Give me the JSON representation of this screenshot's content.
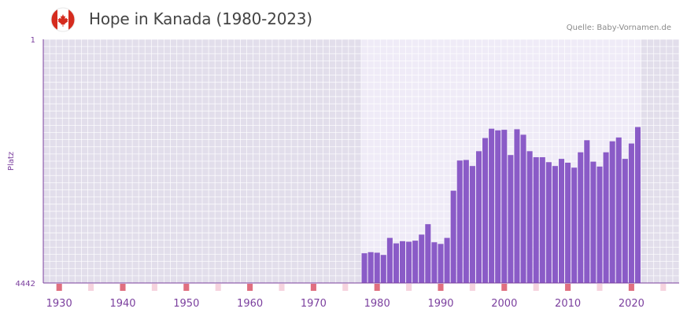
{
  "header": {
    "title": "Hope in Kanada (1980-2023)",
    "source": "Quelle: Baby-Vornamen.de",
    "flag_icon": "canada-flag-icon"
  },
  "colors": {
    "bar": "#8a5bc7",
    "axis": "#7b3f9e",
    "label": "#7b3f9e",
    "decade_marker": "#e06f80",
    "half_decade_marker": "#f6d3de",
    "bg_outside": "#e2deeb",
    "bg_inside": "#efebf7",
    "flag_red": "#d52b1e"
  },
  "chart_data": {
    "type": "bar",
    "title": "Hope in Kanada (1980-2023)",
    "xlabel": "",
    "ylabel": "Platz",
    "y_inverted": true,
    "ylim": [
      4442,
      1
    ],
    "y_tick_labels": [
      "1",
      "4442"
    ],
    "xlim": [
      1928,
      2028
    ],
    "x_tick_labels": [
      "1930",
      "1940",
      "1950",
      "1960",
      "1970",
      "1980",
      "1990",
      "2000",
      "2010",
      "2020"
    ],
    "x_ticks": [
      1930,
      1940,
      1950,
      1960,
      1970,
      1980,
      1990,
      2000,
      2010,
      2020
    ],
    "highlight_range": [
      1978,
      2022
    ],
    "series": [
      {
        "name": "Platz",
        "x": [
          1978,
          1979,
          1980,
          1981,
          1982,
          1983,
          1984,
          1985,
          1986,
          1987,
          1988,
          1989,
          1990,
          1991,
          1992,
          1993,
          1994,
          1995,
          1996,
          1997,
          1998,
          1999,
          2000,
          2001,
          2002,
          2003,
          2004,
          2005,
          2006,
          2007,
          2008,
          2009,
          2010,
          2011,
          2012,
          2013,
          2014,
          2015,
          2016,
          2017,
          2018,
          2019,
          2020,
          2021
        ],
        "values": [
          3900,
          3880,
          3890,
          3930,
          3620,
          3720,
          3680,
          3690,
          3670,
          3560,
          3370,
          3700,
          3730,
          3620,
          2760,
          2210,
          2200,
          2310,
          2040,
          1800,
          1630,
          1660,
          1650,
          2110,
          1640,
          1740,
          2040,
          2150,
          2150,
          2240,
          2310,
          2180,
          2250,
          2340,
          2060,
          1840,
          2230,
          2320,
          2060,
          1860,
          1790,
          2180,
          1900,
          1600
        ]
      }
    ]
  }
}
